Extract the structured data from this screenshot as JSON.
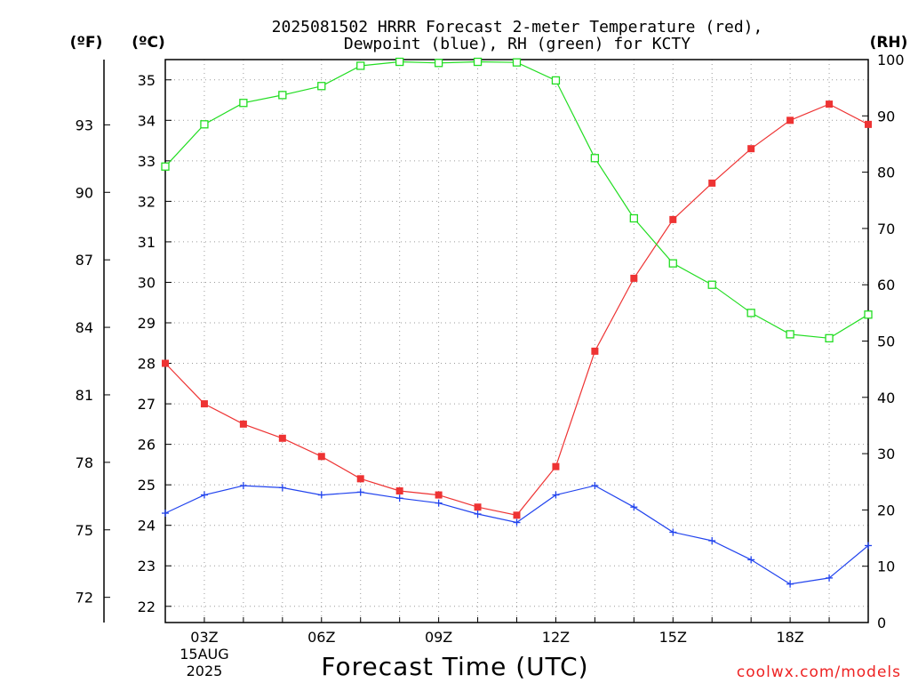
{
  "chart_data": {
    "type": "line",
    "title_line1": "2025081502 HRRR Forecast 2-meter Temperature (red),",
    "title_line2": "Dewpoint (blue), RH (green) for KCTY",
    "xlabel": "Forecast Time (UTC)",
    "credit": "coolwx.com/models",
    "credit_color": "#ee2222",
    "units": {
      "left_outer": "(ºF)",
      "left_inner": "(ºC)",
      "right": "(RH)"
    },
    "x_hours": [
      2,
      3,
      4,
      5,
      6,
      7,
      8,
      9,
      10,
      11,
      12,
      13,
      14,
      15,
      16,
      17,
      18,
      19,
      20
    ],
    "x_ticks": [
      {
        "hour": 3,
        "label": "03Z",
        "sub1": "15AUG",
        "sub2": "2025"
      },
      {
        "hour": 6,
        "label": "06Z"
      },
      {
        "hour": 9,
        "label": "09Z"
      },
      {
        "hour": 12,
        "label": "12Z"
      },
      {
        "hour": 15,
        "label": "15Z"
      },
      {
        "hour": 18,
        "label": "18Z"
      }
    ],
    "xlim": [
      2,
      20
    ],
    "celsius_axis": {
      "ylim": [
        21.6,
        35.5
      ],
      "ticks": [
        22,
        23,
        24,
        25,
        26,
        27,
        28,
        29,
        30,
        31,
        32,
        33,
        34,
        35
      ]
    },
    "fahrenheit_axis": {
      "ticks": [
        72,
        75,
        78,
        81,
        84,
        87,
        90,
        93
      ]
    },
    "rh_axis": {
      "ylim": [
        0,
        100
      ],
      "ticks": [
        0,
        10,
        20,
        30,
        40,
        50,
        60,
        70,
        80,
        90,
        100
      ]
    },
    "series": [
      {
        "name": "Temperature",
        "color": "#ee3333",
        "marker": "filled-square",
        "axis": "celsius",
        "values": [
          28.0,
          27.0,
          26.5,
          26.15,
          25.7,
          25.15,
          24.85,
          24.75,
          24.45,
          24.25,
          25.45,
          28.3,
          30.1,
          31.55,
          32.45,
          33.3,
          34.0,
          34.4,
          33.9
        ]
      },
      {
        "name": "Dewpoint",
        "color": "#2244ee",
        "marker": "plus",
        "axis": "celsius",
        "values": [
          24.3,
          24.75,
          24.98,
          24.93,
          24.75,
          24.82,
          24.67,
          24.55,
          24.28,
          24.07,
          24.75,
          24.98,
          24.45,
          23.83,
          23.62,
          23.15,
          22.55,
          22.7,
          23.5
        ]
      },
      {
        "name": "RH",
        "color": "#22dd22",
        "marker": "open-square",
        "axis": "rh",
        "values": [
          81,
          88.5,
          92.3,
          93.7,
          95.3,
          98.9,
          99.6,
          99.4,
          99.6,
          99.5,
          96.3,
          82.5,
          71.8,
          63.8,
          60.0,
          55.0,
          51.2,
          50.5,
          54.7
        ]
      }
    ]
  }
}
